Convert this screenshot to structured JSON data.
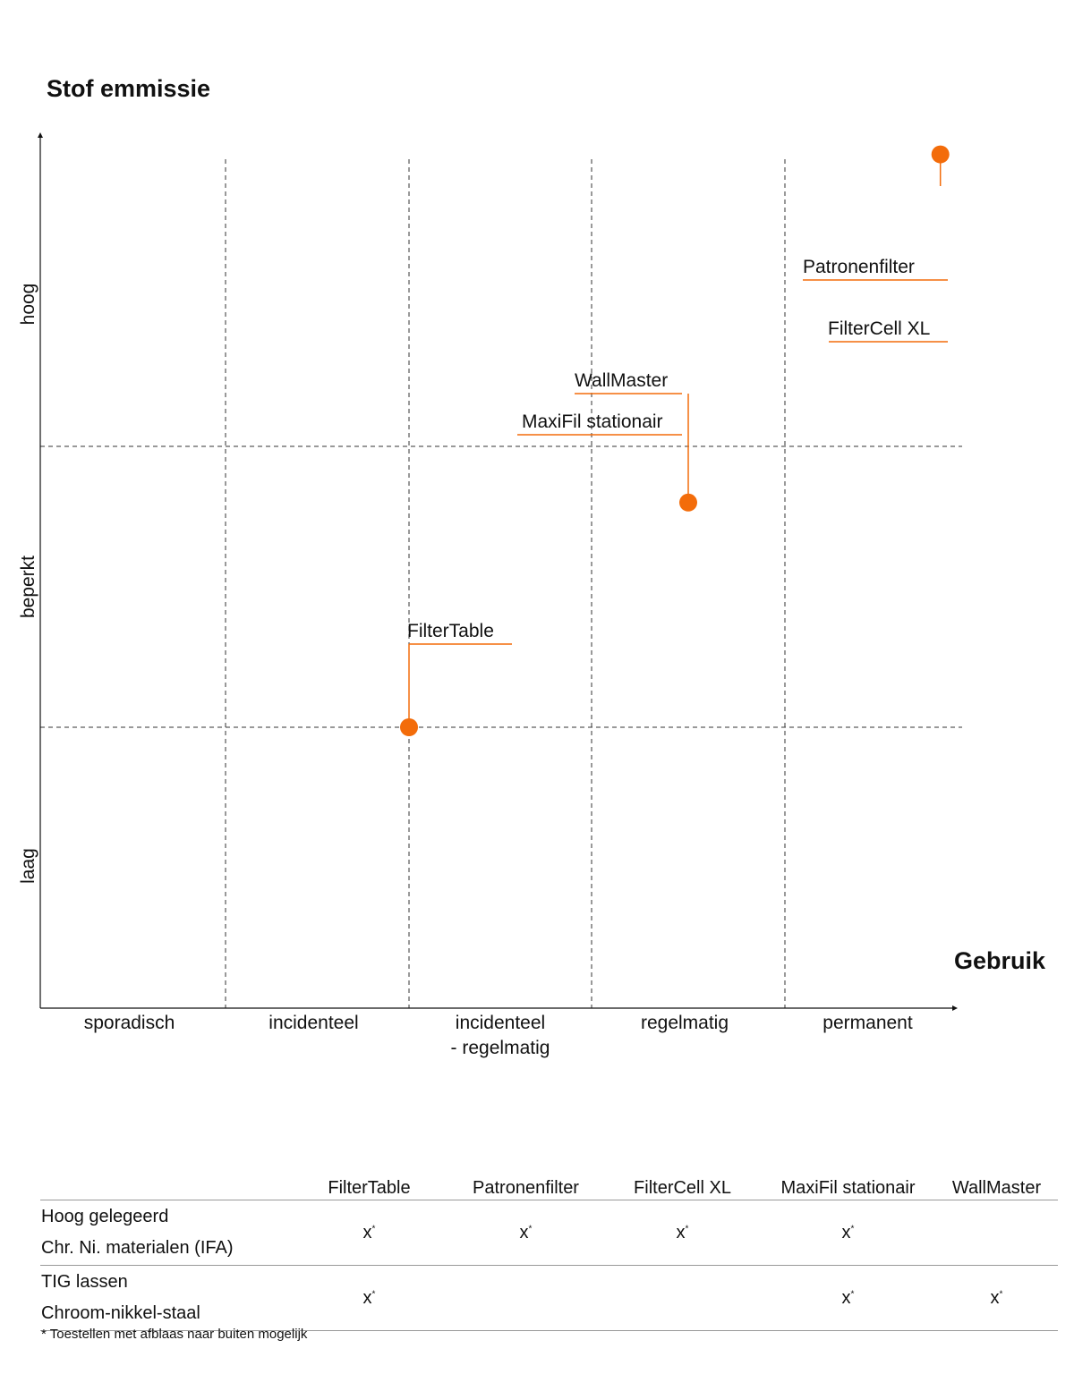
{
  "chart_data": {
    "type": "scatter",
    "title": "Stof emmissie",
    "xlabel": "Gebruik",
    "x_categories": [
      "sporadisch",
      "incidenteel",
      "incidenteel\n- regelmatig",
      "regelmatig",
      "permanent"
    ],
    "y_categories": [
      "laag",
      "beperkt",
      "hoog"
    ],
    "grid": "dashed",
    "accent_color": "#f36c0a",
    "points": [
      {
        "x": 2.0,
        "y": 1.0,
        "labels": [
          "FilterTable"
        ]
      },
      {
        "x": 3.5,
        "y": 1.8,
        "labels": [
          "WallMaster",
          "MaxiFil stationair"
        ]
      },
      {
        "x": 4.9,
        "y": 2.93,
        "labels": [
          "Patronenfilter",
          "FilterCell XL"
        ]
      }
    ]
  },
  "table": {
    "columns": [
      "FilterTable",
      "Patronenfilter",
      "FilterCell XL",
      "MaxiFil stationair",
      "WallMaster"
    ],
    "rows": [
      {
        "label": [
          "Hoog gelegeerd",
          "Chr. Ni. materialen (IFA)"
        ],
        "marks": [
          true,
          true,
          true,
          true,
          false
        ]
      },
      {
        "label": [
          "TIG lassen",
          "Chroom-nikkel-staal"
        ],
        "marks": [
          true,
          false,
          false,
          true,
          true
        ]
      }
    ],
    "mark": "x",
    "mark_note": "*",
    "footnote": "* Toestellen met afblaas naar buiten mogelijk"
  }
}
